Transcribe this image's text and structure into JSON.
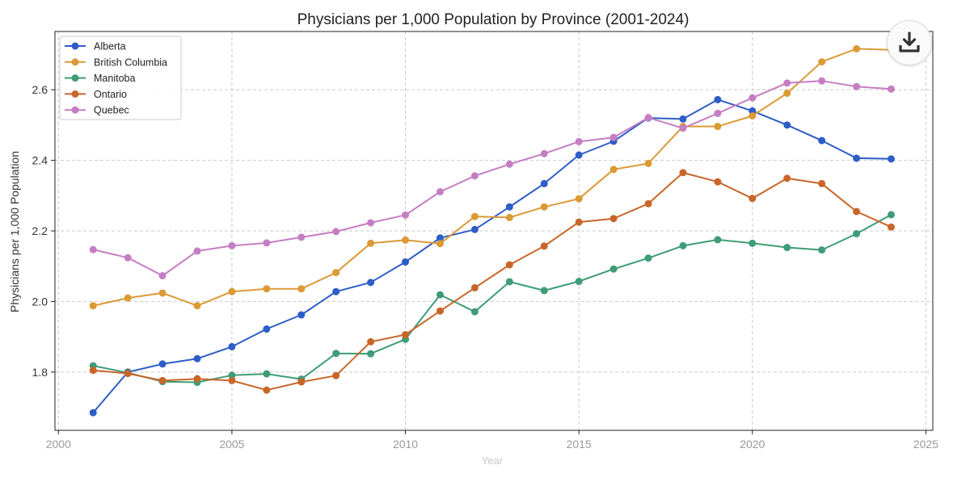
{
  "chart_data": {
    "type": "line",
    "title": "Physicians per 1,000 Population by Province (2001-2024)",
    "xlabel": "Year",
    "ylabel": "Physicians per 1,000 Population",
    "xlim": [
      1999.9,
      2025.2
    ],
    "ylim": [
      1.635,
      2.765
    ],
    "x_ticks": [
      2000,
      2005,
      2010,
      2015,
      2020,
      2025
    ],
    "y_ticks": [
      1.8,
      2.0,
      2.2,
      2.4,
      2.6
    ],
    "grid": true,
    "legend_position": "top-left",
    "x": [
      2001,
      2002,
      2003,
      2004,
      2005,
      2006,
      2007,
      2008,
      2009,
      2010,
      2011,
      2012,
      2013,
      2014,
      2015,
      2016,
      2017,
      2018,
      2019,
      2020,
      2021,
      2022,
      2023,
      2024
    ],
    "series": [
      {
        "name": "Alberta",
        "color": "#2e5dc7",
        "values": [
          1.685,
          1.8,
          1.823,
          1.838,
          1.872,
          1.922,
          1.962,
          2.028,
          2.054,
          2.112,
          2.18,
          2.204,
          2.268,
          2.334,
          2.415,
          2.454,
          2.52,
          2.517,
          2.572,
          2.54,
          2.5,
          2.456,
          2.406,
          2.404
        ]
      },
      {
        "name": "British Columbia",
        "color": "#db9a36",
        "values": [
          1.988,
          2.01,
          2.024,
          1.988,
          2.028,
          2.036,
          2.036,
          2.082,
          2.165,
          2.174,
          2.164,
          2.241,
          2.238,
          2.268,
          2.291,
          2.374,
          2.391,
          2.496,
          2.496,
          2.526,
          2.59,
          2.679,
          2.716,
          2.713
        ]
      },
      {
        "name": "Manitoba",
        "color": "#3f9c76",
        "values": [
          1.818,
          1.798,
          1.773,
          1.771,
          1.791,
          1.795,
          1.78,
          1.853,
          1.852,
          1.893,
          2.019,
          1.971,
          2.056,
          2.031,
          2.057,
          2.092,
          2.123,
          2.158,
          2.175,
          2.165,
          2.153,
          2.146,
          2.192,
          2.246
        ]
      },
      {
        "name": "Ontario",
        "color": "#c8662a",
        "values": [
          1.805,
          1.796,
          1.776,
          1.781,
          1.776,
          1.749,
          1.772,
          1.79,
          1.886,
          1.906,
          1.973,
          2.039,
          2.104,
          2.157,
          2.225,
          2.235,
          2.277,
          2.365,
          2.339,
          2.292,
          2.349,
          2.334,
          2.255,
          2.211
        ]
      },
      {
        "name": "Quebec",
        "color": "#c57ec3",
        "values": [
          2.147,
          2.124,
          2.073,
          2.143,
          2.158,
          2.166,
          2.182,
          2.198,
          2.223,
          2.245,
          2.311,
          2.356,
          2.389,
          2.419,
          2.453,
          2.465,
          2.521,
          2.491,
          2.533,
          2.577,
          2.619,
          2.625,
          2.609,
          2.602
        ]
      }
    ]
  },
  "toolbar": {
    "download_icon": "download-icon"
  }
}
